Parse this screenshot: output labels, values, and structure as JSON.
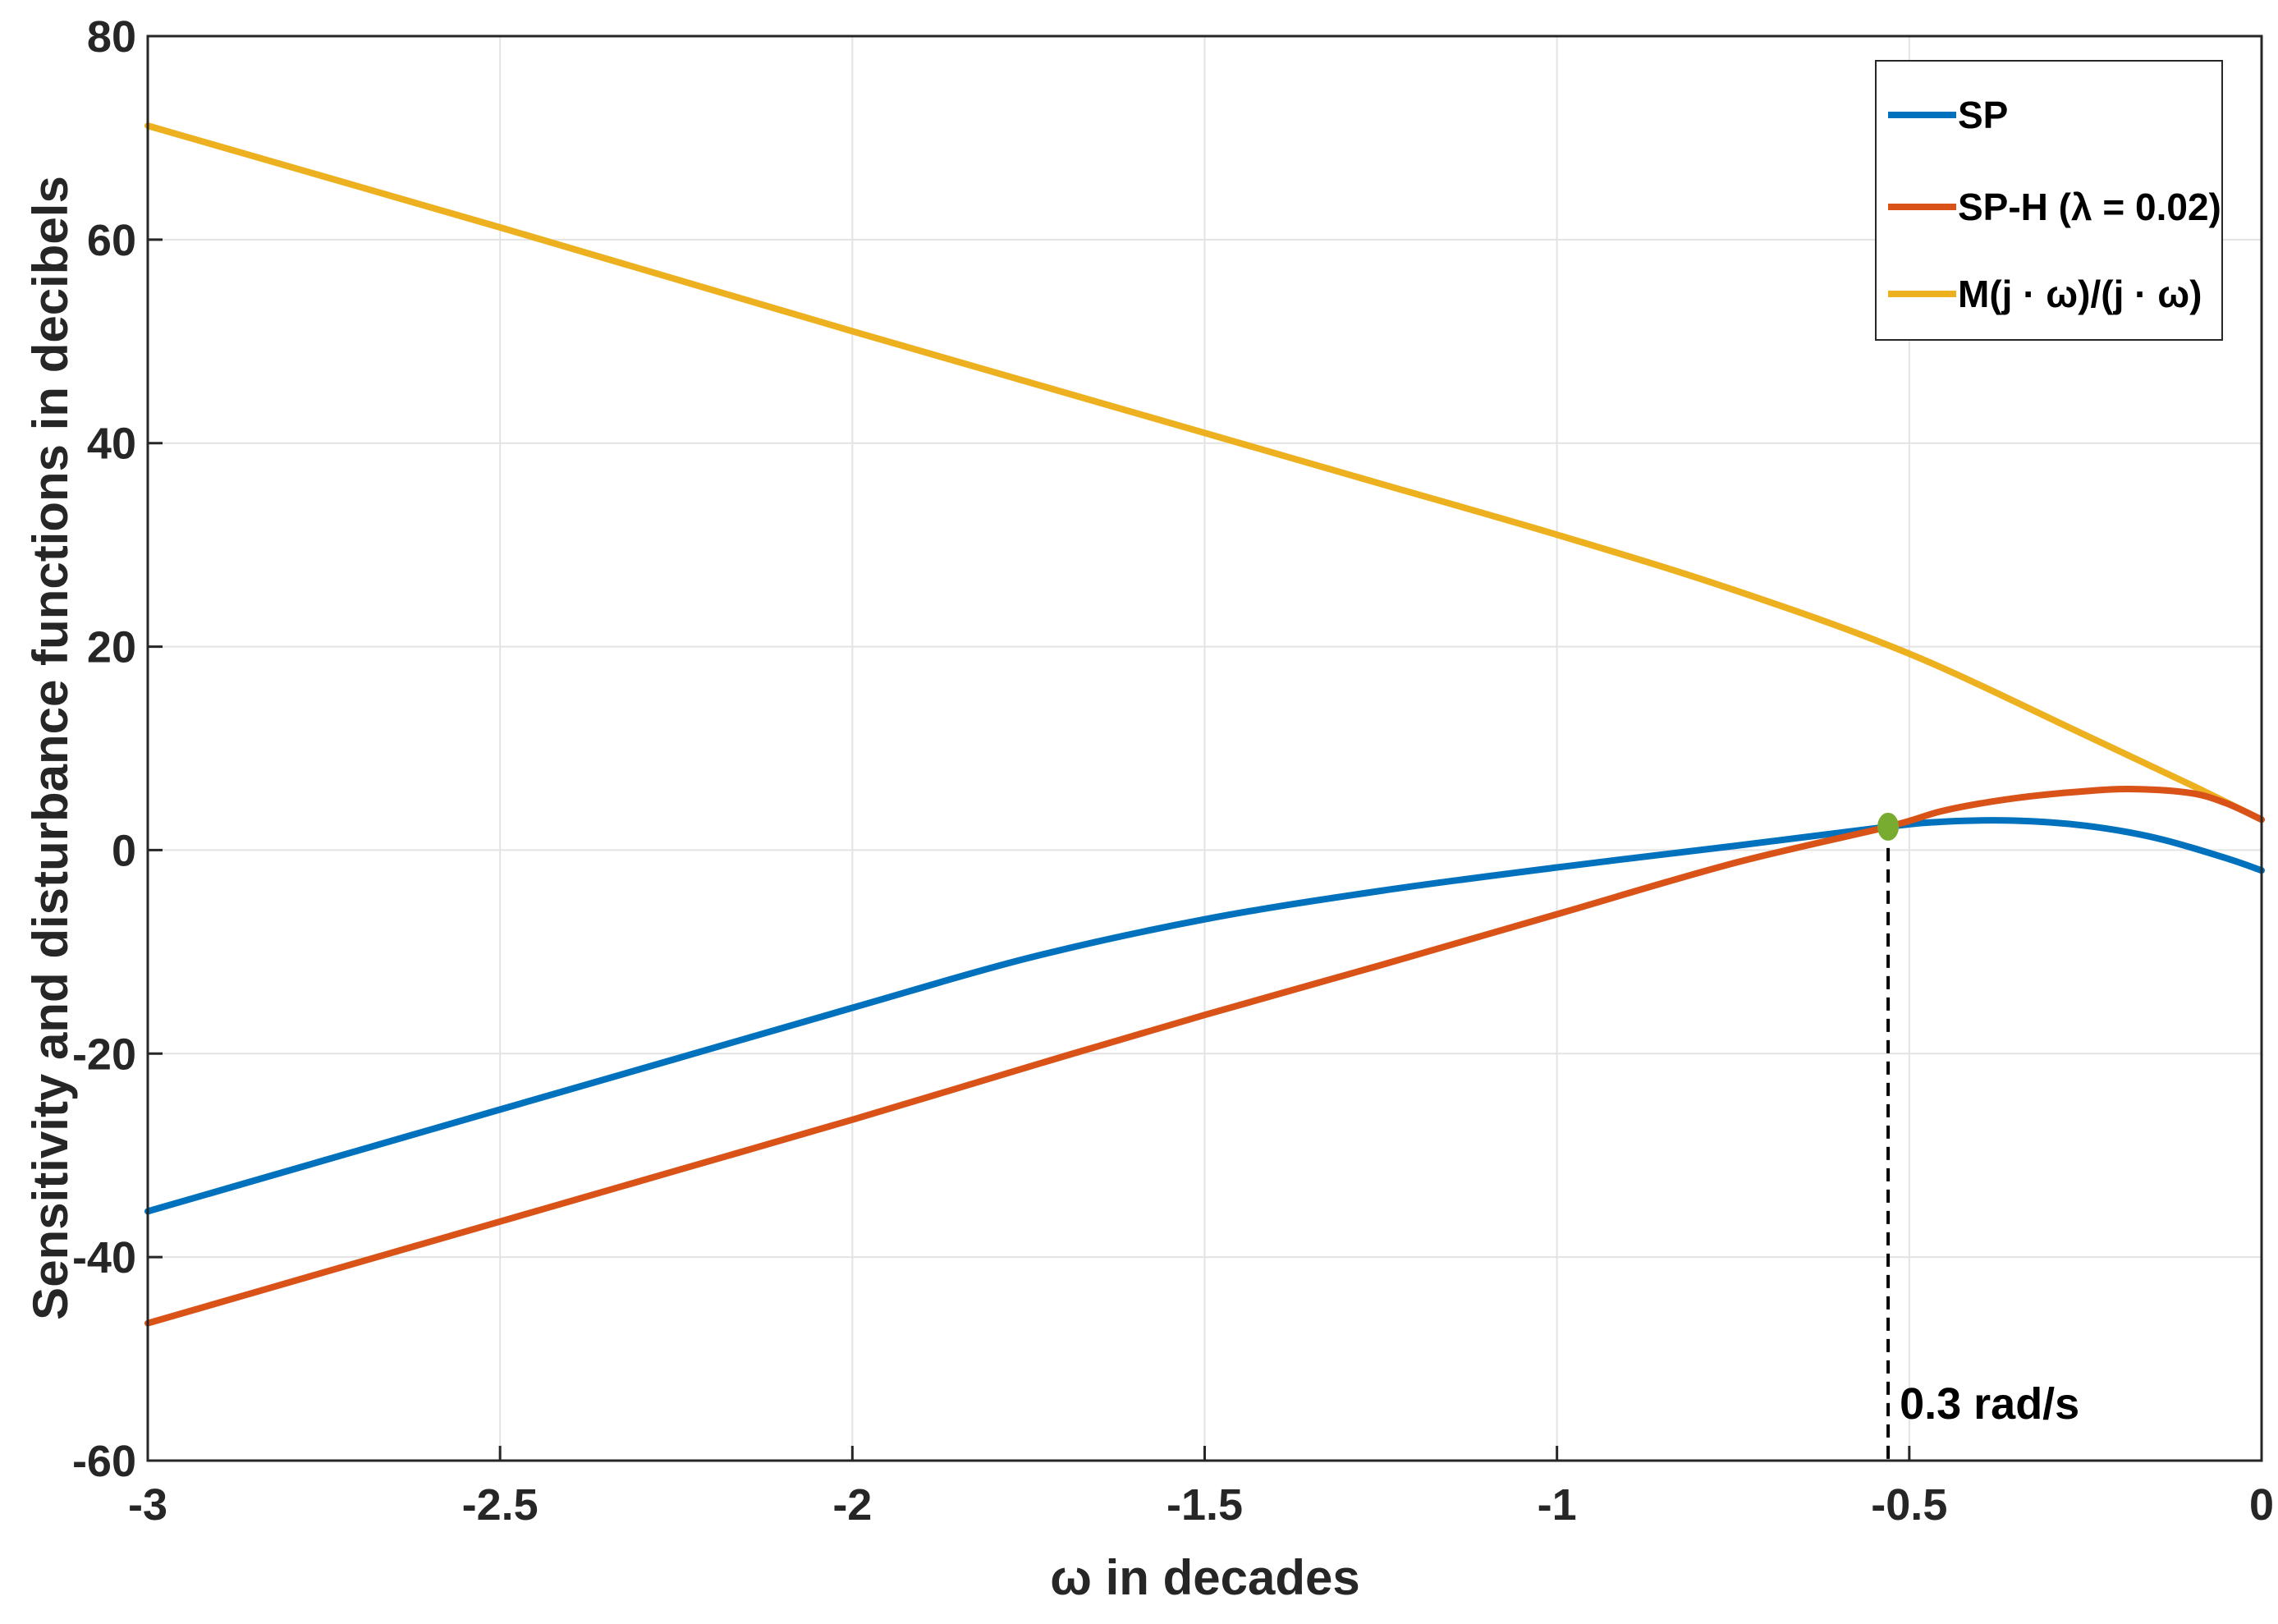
{
  "chart_data": {
    "type": "line",
    "title": "",
    "xlabel": "ω in decades",
    "ylabel": "Sensitivity and disturbance functions in decibels",
    "xlim": [
      -3,
      0
    ],
    "ylim": [
      -60,
      80
    ],
    "xticks": [
      -3,
      -2.5,
      -2,
      -1.5,
      -1,
      -0.5,
      0
    ],
    "xtick_labels": [
      "-3",
      "-2.5",
      "-2",
      "-1.5",
      "-1",
      "-0.5",
      "0"
    ],
    "yticks": [
      -60,
      -40,
      -20,
      0,
      20,
      40,
      60,
      80
    ],
    "ytick_labels": [
      "-60",
      "-40",
      "-20",
      "0",
      "20",
      "40",
      "60",
      "80"
    ],
    "grid": true,
    "legend_position": "top-right",
    "series": [
      {
        "name": "SP",
        "color": "#0072BD",
        "x": [
          -3,
          -2.75,
          -2.5,
          -2.25,
          -2,
          -1.75,
          -1.5,
          -1.25,
          -1,
          -0.75,
          -0.53,
          -0.45,
          -0.35,
          -0.25,
          -0.15,
          -0.05,
          0
        ],
        "y": [
          -35.5,
          -30.5,
          -25.5,
          -20.5,
          -15.5,
          -10.6,
          -6.8,
          -4.0,
          -1.7,
          0.4,
          2.3,
          2.8,
          2.9,
          2.4,
          1.2,
          -0.8,
          -2.0
        ]
      },
      {
        "name": "SP-H (λ = 0.02)",
        "color": "#D95319",
        "x": [
          -3,
          -2.75,
          -2.5,
          -2.25,
          -2,
          -1.75,
          -1.5,
          -1.25,
          -1,
          -0.75,
          -0.53,
          -0.45,
          -0.35,
          -0.25,
          -0.18,
          -0.1,
          -0.05,
          0
        ],
        "y": [
          -46.5,
          -41.5,
          -36.5,
          -31.5,
          -26.5,
          -21.3,
          -16.2,
          -11.3,
          -6.3,
          -1.3,
          2.3,
          3.9,
          5.1,
          5.8,
          6.0,
          5.6,
          4.6,
          3.0
        ]
      },
      {
        "name": "M(j · ω)/(j · ω)",
        "color": "#EDB120",
        "x": [
          -3,
          -2.75,
          -2.5,
          -2.25,
          -2,
          -1.75,
          -1.5,
          -1.25,
          -1,
          -0.75,
          -0.5,
          -0.25,
          -0.1,
          0
        ],
        "y": [
          71.2,
          66.2,
          61.2,
          56.1,
          51.0,
          46.0,
          41.0,
          36.0,
          31.0,
          25.6,
          19.3,
          11.3,
          6.4,
          3.0
        ]
      }
    ],
    "annotations": [
      {
        "label": "0.3 rad/s",
        "marker": {
          "x": -0.53,
          "y": 2.3,
          "color": "#77AC30"
        },
        "vline_x": -0.53
      }
    ]
  }
}
